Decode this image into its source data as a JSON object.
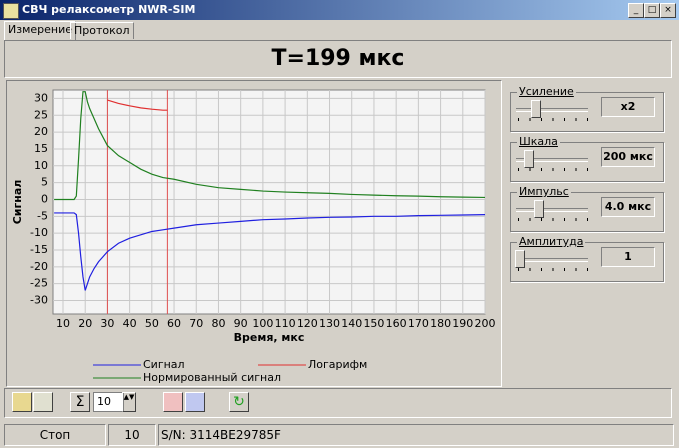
{
  "window": {
    "title": "СВЧ релаксометр NWR-SIM"
  },
  "tabs": [
    "Измерение",
    "Протокол"
  ],
  "header": {
    "title": "T=199 мкс"
  },
  "chart_data": {
    "type": "line",
    "ylabel": "Сигнал",
    "xlabel": "Время, мкс",
    "grid": true,
    "xlim": [
      5.5,
      200
    ],
    "xticks": [
      10,
      20,
      30,
      40,
      50,
      60,
      70,
      80,
      90,
      100,
      110,
      120,
      130,
      140,
      150,
      160,
      170,
      180,
      190,
      200
    ],
    "ylim": [
      -34,
      32.5
    ],
    "yticks": [
      -30,
      -25,
      -20,
      -15,
      -10,
      -5,
      0,
      5,
      10,
      15,
      20,
      25,
      30
    ],
    "cursors": [
      30,
      57
    ],
    "cursor_color": "#e05050",
    "series": [
      {
        "name": "Сигнал",
        "color": "#2020e0",
        "x": [
          6,
          10,
          15,
          16,
          17,
          18,
          19,
          20,
          21,
          22,
          24,
          26,
          28,
          30,
          35,
          40,
          45,
          50,
          55,
          60,
          70,
          80,
          90,
          100,
          110,
          120,
          130,
          140,
          150,
          160,
          170,
          180,
          190,
          200
        ],
        "values": [
          -4,
          -4,
          -4,
          -4.5,
          -10,
          -17,
          -23,
          -27,
          -25,
          -23,
          -20.5,
          -18.5,
          -17,
          -15.5,
          -13,
          -11.5,
          -10.5,
          -9.5,
          -9,
          -8.5,
          -7.5,
          -7,
          -6.5,
          -6,
          -5.8,
          -5.5,
          -5.3,
          -5.2,
          -5,
          -5,
          -4.8,
          -4.7,
          -4.6,
          -4.5
        ]
      },
      {
        "name": "Логарифм",
        "color": "#e03030",
        "x": [
          30,
          35,
          40,
          45,
          50,
          55,
          57
        ],
        "values": [
          29.5,
          28.5,
          27.8,
          27.2,
          26.8,
          26.5,
          26.5
        ]
      },
      {
        "name": "Нормированный сигнал",
        "color": "#208020",
        "x": [
          6,
          10,
          15,
          16,
          17,
          18,
          19,
          20,
          21,
          22,
          24,
          26,
          28,
          30,
          35,
          40,
          45,
          50,
          55,
          60,
          70,
          80,
          90,
          100,
          110,
          120,
          130,
          140,
          150,
          160,
          170,
          180,
          190,
          200
        ],
        "values": [
          0,
          0,
          0,
          1,
          12,
          24,
          32,
          32,
          29,
          27,
          24,
          21,
          18.5,
          16,
          13,
          11,
          9,
          7.5,
          6.5,
          6,
          4.5,
          3.5,
          3,
          2.5,
          2.2,
          2,
          1.8,
          1.5,
          1.3,
          1.1,
          1,
          0.8,
          0.7,
          0.6
        ]
      }
    ]
  },
  "controls": [
    {
      "label": "Усиление",
      "value": "x2"
    },
    {
      "label": "Шкала",
      "value": "200 мкс"
    },
    {
      "label": "Импульс",
      "value": "4.0 мкс"
    },
    {
      "label": "Амплитуда",
      "value": "1"
    }
  ],
  "toolbar": {
    "count": "10"
  },
  "status": [
    "Стоп",
    "10",
    "S/N: 3114BE29785F"
  ]
}
